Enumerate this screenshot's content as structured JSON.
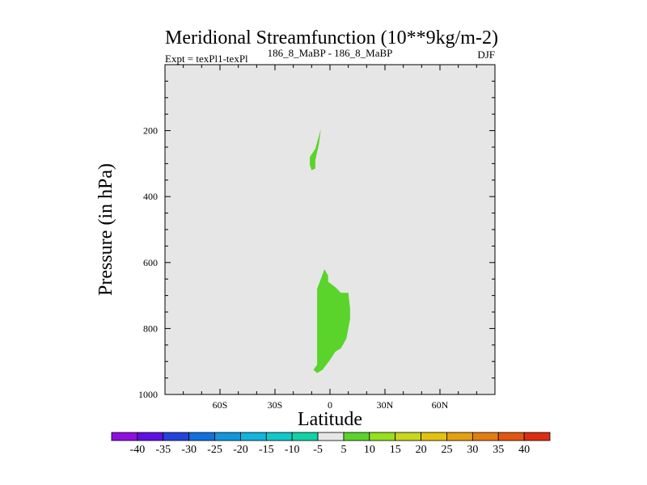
{
  "chart_data": {
    "type": "contour",
    "title": "Meridional Streamfunction (10**9kg/m-2)",
    "left_string": "Expt = texPl1-texPl",
    "center_string": "186_8_MaBP - 186_8_MaBP",
    "right_string": "DJF",
    "xlabel": "Latitude",
    "ylabel": "Pressure (in hPa)",
    "xlim": [
      -90,
      90
    ],
    "ylim": [
      1000,
      0
    ],
    "y_scale": "linear-reversed",
    "xticks": [
      {
        "value": -60,
        "label": "60S"
      },
      {
        "value": -30,
        "label": "30S"
      },
      {
        "value": 0,
        "label": "0"
      },
      {
        "value": 30,
        "label": "30N"
      },
      {
        "value": 60,
        "label": "60N"
      }
    ],
    "yticks": [
      {
        "value": 200,
        "label": "200"
      },
      {
        "value": 400,
        "label": "400"
      },
      {
        "value": 600,
        "label": "600"
      },
      {
        "value": 800,
        "label": "800"
      },
      {
        "value": 1000,
        "label": "1000"
      }
    ],
    "background_color": "#e6e6e6",
    "filled_regions": [
      {
        "level_range": [
          5,
          10
        ],
        "color": "#5ad42b",
        "polygon": [
          [
            -5,
            195
          ],
          [
            -6,
            240
          ],
          [
            -8,
            290
          ],
          [
            -8,
            315
          ],
          [
            -10,
            320
          ],
          [
            -11,
            305
          ],
          [
            -11,
            280
          ],
          [
            -8,
            255
          ]
        ]
      },
      {
        "level_range": [
          5,
          10
        ],
        "color": "#5ad42b",
        "polygon": [
          [
            -3,
            620
          ],
          [
            -1,
            640
          ],
          [
            -1,
            658
          ],
          [
            3,
            675
          ],
          [
            6,
            692
          ],
          [
            10,
            692
          ],
          [
            11,
            740
          ],
          [
            11,
            770
          ],
          [
            9,
            830
          ],
          [
            6,
            860
          ],
          [
            3,
            870
          ],
          [
            0,
            895
          ],
          [
            -4,
            925
          ],
          [
            -7,
            935
          ],
          [
            -9,
            925
          ],
          [
            -7,
            910
          ],
          [
            -7,
            680
          ]
        ]
      }
    ],
    "colorbar": {
      "labels": [
        "-40",
        "-35",
        "-30",
        "-25",
        "-20",
        "-15",
        "-10",
        "-5",
        "5",
        "10",
        "15",
        "20",
        "25",
        "30",
        "35",
        "40"
      ],
      "colors": [
        "#8f0fe0",
        "#5f10e0",
        "#2244dd",
        "#1170dd",
        "#1195dd",
        "#11b5dd",
        "#11c8c8",
        "#11d2a5",
        "#e6e6e6",
        "#5ad42b",
        "#96e01c",
        "#c8d61d",
        "#e3c20f",
        "#e3a00f",
        "#e37d0f",
        "#e3560f",
        "#dc2d10"
      ]
    }
  }
}
